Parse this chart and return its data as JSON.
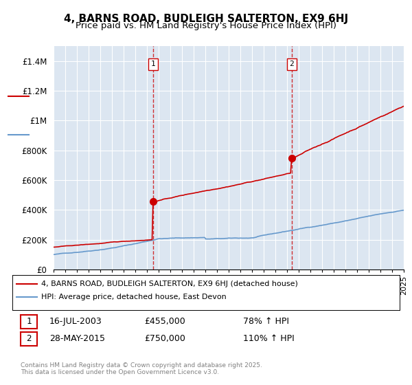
{
  "title": "4, BARNS ROAD, BUDLEIGH SALTERTON, EX9 6HJ",
  "subtitle": "Price paid vs. HM Land Registry's House Price Index (HPI)",
  "ylabel": "",
  "ylim": [
    0,
    1500000
  ],
  "yticks": [
    0,
    200000,
    400000,
    600000,
    800000,
    1000000,
    1200000,
    1400000
  ],
  "ytick_labels": [
    "£0",
    "£200K",
    "£400K",
    "£600K",
    "£800K",
    "£1M",
    "£1.2M",
    "£1.4M"
  ],
  "sale1_date_idx": 8.54,
  "sale1_price": 455000,
  "sale1_label": "1",
  "sale1_date_str": "16-JUL-2003",
  "sale1_hpi_pct": "78% ↑ HPI",
  "sale2_date_idx": 20.41,
  "sale2_price": 750000,
  "sale2_label": "2",
  "sale2_date_str": "28-MAY-2015",
  "sale2_hpi_pct": "110% ↑ HPI",
  "house_color": "#cc0000",
  "hpi_color": "#6699cc",
  "vline_color": "#cc0000",
  "background_color": "#dce6f1",
  "plot_bg": "#dce6f1",
  "legend_house": "4, BARNS ROAD, BUDLEIGH SALTERTON, EX9 6HJ (detached house)",
  "legend_hpi": "HPI: Average price, detached house, East Devon",
  "footnote": "Contains HM Land Registry data © Crown copyright and database right 2025.\nThis data is licensed under the Open Government Licence v3.0.",
  "title_fontsize": 11,
  "subtitle_fontsize": 9.5,
  "tick_fontsize": 8.5,
  "x_start_year": 1995,
  "x_end_year": 2025
}
